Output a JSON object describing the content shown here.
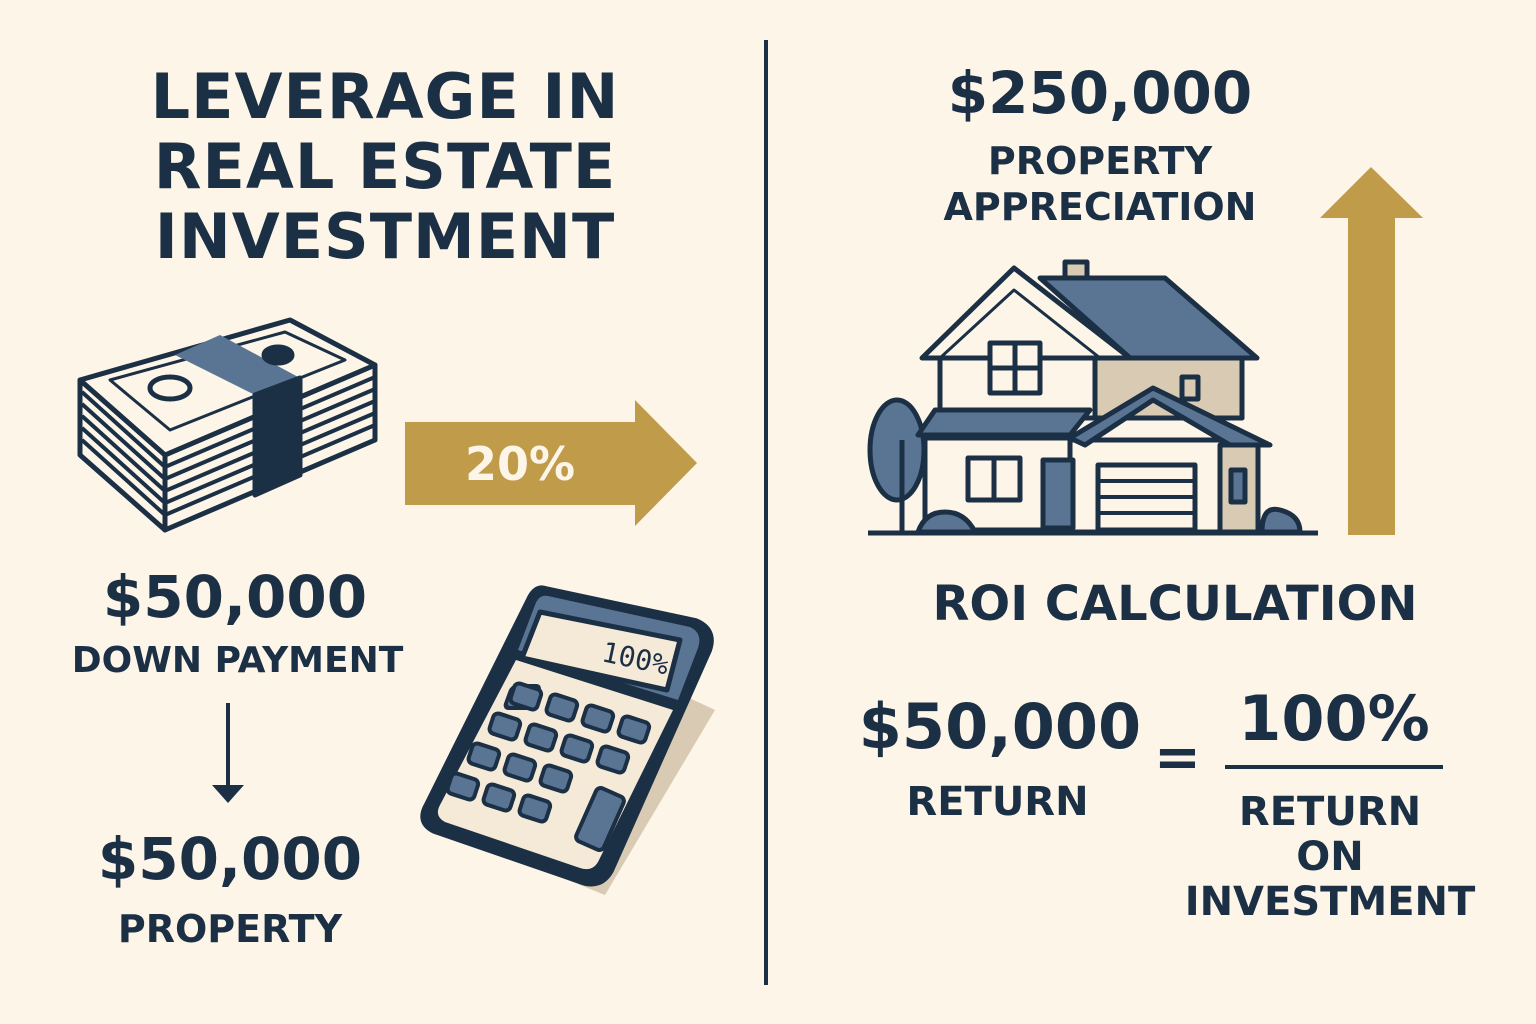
{
  "title": {
    "line1": "LEVERAGE IN",
    "line2": "REAL ESTATE",
    "line3": "INVESTMENT"
  },
  "left": {
    "arrow_label": "20%",
    "down_payment_amount": "$50,000",
    "down_payment_label": "DOWN PAYMENT",
    "property_amount": "$50,000",
    "property_label": "PROPERTY",
    "calculator_display": "100%"
  },
  "right": {
    "appreciation_amount": "$250,000",
    "appreciation_label_1": "PROPERTY",
    "appreciation_label_2": "APPRECIATION",
    "roi_heading": "ROI CALCULATION",
    "return_amount": "$50,000",
    "return_label": "RETURN",
    "equals": "=",
    "roi_value": "100%",
    "roi_label_1": "RETURN",
    "roi_label_2": "ON",
    "roi_label_3": "INVESTMENT"
  },
  "colors": {
    "background": "#fdf5e8",
    "navy": "#1b2f45",
    "gold": "#bf9b4a",
    "slate_blue": "#5a7494",
    "tan": "#d9cbb3"
  },
  "icons": [
    "money-stack-icon",
    "gold-arrow-right-icon",
    "calculator-icon",
    "house-icon",
    "gold-arrow-up-icon",
    "down-arrow-icon"
  ]
}
